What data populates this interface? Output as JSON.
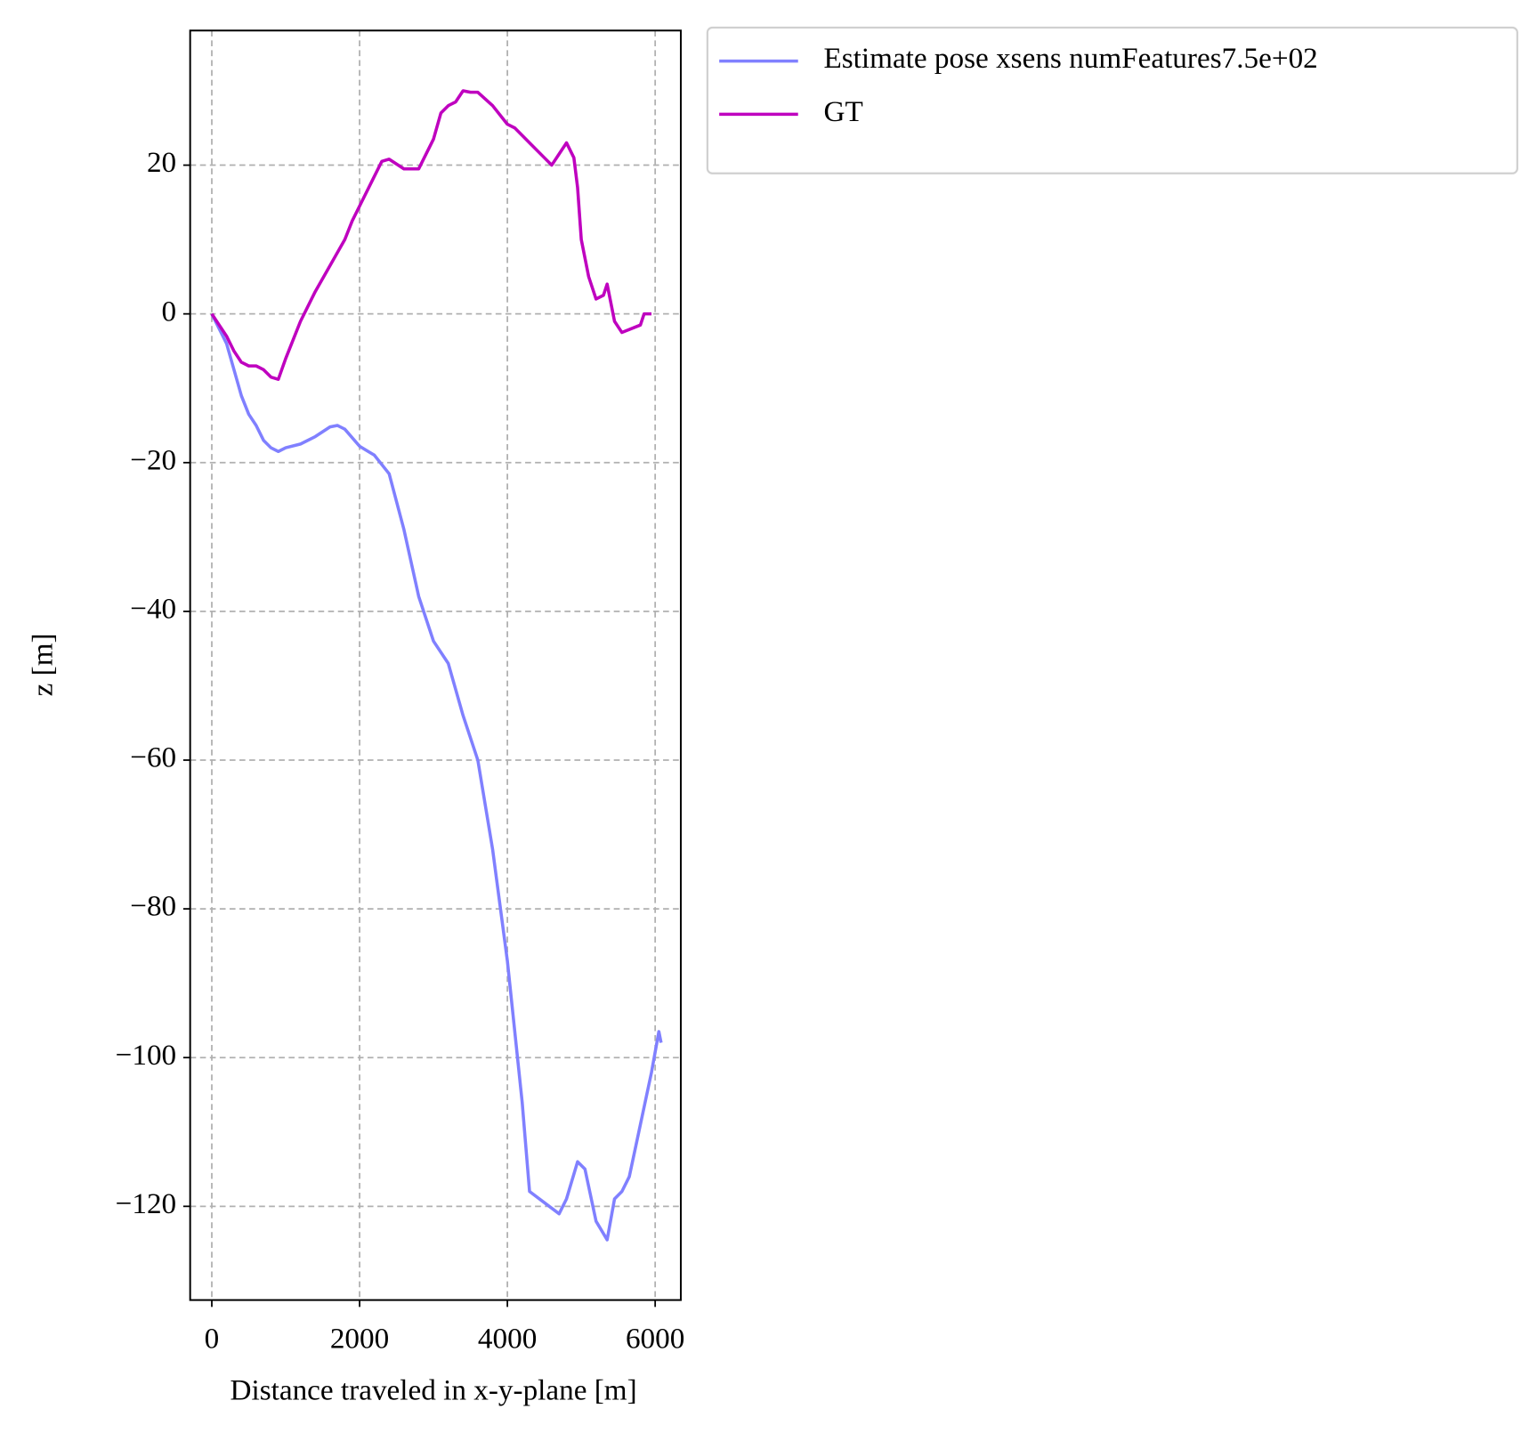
{
  "chart_data": {
    "type": "line",
    "xlabel": "Distance traveled in x-y-plane [m]",
    "ylabel": "z [m]",
    "xlim": [
      -293,
      6347
    ],
    "ylim": [
      -132.6,
      38.1
    ],
    "xticks": [
      0,
      2000,
      4000,
      6000
    ],
    "yticks": [
      {
        "value": -120,
        "label": "−120"
      },
      {
        "value": -100,
        "label": "−100"
      },
      {
        "value": -80,
        "label": "−80"
      },
      {
        "value": -60,
        "label": "−60"
      },
      {
        "value": -40,
        "label": "−40"
      },
      {
        "value": -20,
        "label": "−20"
      },
      0,
      20
    ],
    "grid": true,
    "legend": "outside upper right",
    "series": [
      {
        "name": "Estimate pose xsens numFeatures7.5e+02",
        "color": "#8080ff",
        "x": [
          0,
          100,
          200,
          300,
          400,
          500,
          600,
          700,
          800,
          900,
          1000,
          1200,
          1400,
          1600,
          1700,
          1800,
          2000,
          2200,
          2400,
          2600,
          2800,
          3000,
          3200,
          3400,
          3600,
          3800,
          4000,
          4200,
          4300,
          4500,
          4700,
          4800,
          4950,
          5050,
          5200,
          5350,
          5450,
          5550,
          5650,
          5800,
          5950,
          6050,
          6080
        ],
        "values": [
          0,
          -2,
          -4,
          -7.5,
          -11,
          -13.5,
          -15,
          -17,
          -18,
          -18.5,
          -18,
          -17.5,
          -16.5,
          -15.2,
          -15,
          -15.5,
          -17.8,
          -19,
          -21.5,
          -29,
          -38,
          -44,
          -47,
          -54,
          -60,
          -72,
          -87,
          -106,
          -118,
          -119.5,
          -121,
          -119,
          -114,
          -115,
          -122,
          -124.5,
          -119,
          -118,
          -116,
          -109,
          -102,
          -96.5,
          -98
        ]
      },
      {
        "name": "GT",
        "color": "#bf00bf",
        "x": [
          0,
          100,
          200,
          300,
          400,
          500,
          600,
          700,
          800,
          900,
          1000,
          1200,
          1400,
          1600,
          1800,
          1900,
          2000,
          2200,
          2300,
          2400,
          2600,
          2800,
          3000,
          3100,
          3200,
          3300,
          3400,
          3500,
          3600,
          3800,
          4000,
          4100,
          4200,
          4300,
          4500,
          4600,
          4700,
          4800,
          4900,
          4950,
          5000,
          5100,
          5200,
          5300,
          5350,
          5450,
          5550,
          5800,
          5850,
          5950
        ],
        "values": [
          0,
          -1.5,
          -3,
          -5,
          -6.5,
          -7,
          -7,
          -7.5,
          -8.5,
          -8.8,
          -6,
          -1,
          3,
          6.5,
          10,
          12.5,
          14.5,
          18.5,
          20.5,
          20.8,
          19.5,
          19.5,
          23.5,
          27,
          28,
          28.5,
          30,
          29.8,
          29.8,
          28,
          25.5,
          25,
          24,
          23,
          21,
          20,
          21.5,
          23,
          21,
          17,
          10,
          5,
          2,
          2.5,
          4,
          -1,
          -2.5,
          -1.5,
          0,
          0
        ]
      }
    ]
  }
}
